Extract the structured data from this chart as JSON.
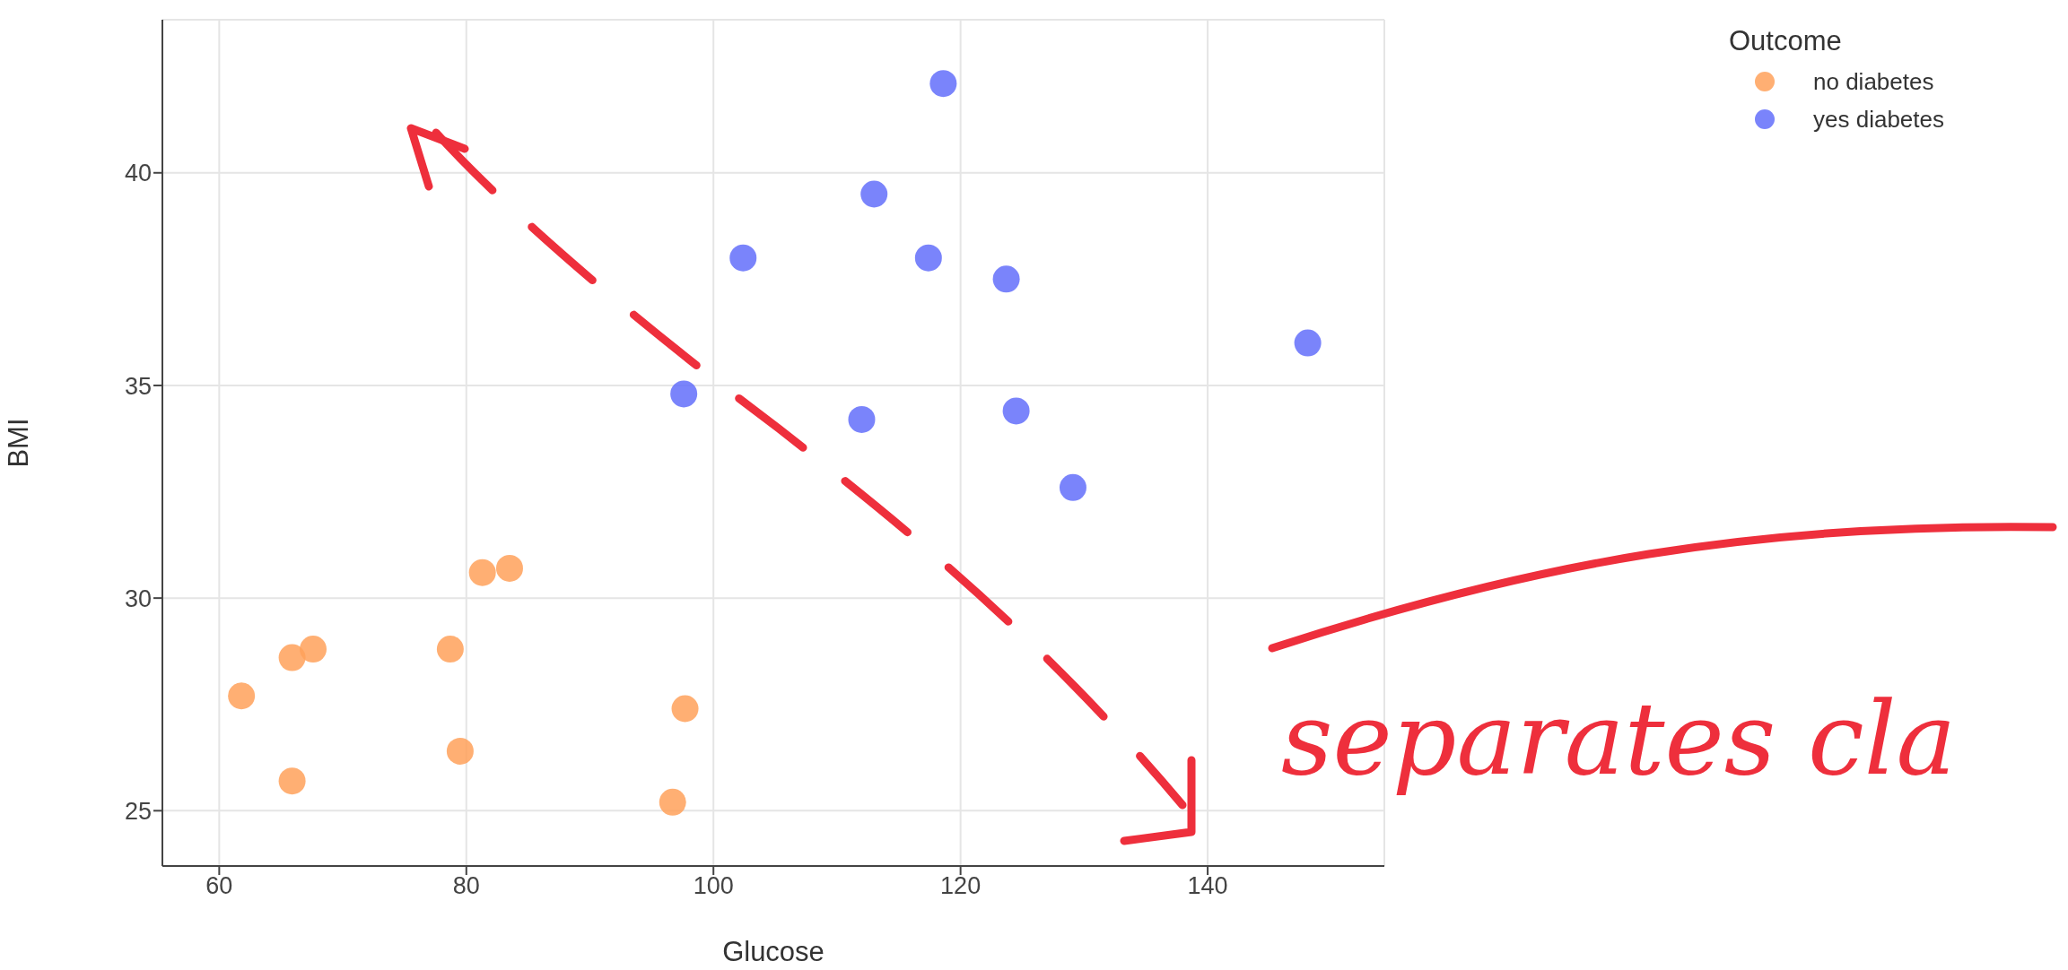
{
  "chart_data": {
    "type": "scatter",
    "xlabel": "Glucose",
    "ylabel": "BMI",
    "legend_title": "Outcome",
    "legend": "top right",
    "grid": true,
    "marker": "circle",
    "xlim": [
      55.4,
      154.3
    ],
    "xticks": [
      60,
      80,
      100,
      120,
      140
    ],
    "ylim": [
      23.7,
      43.6
    ],
    "yticks": [
      25,
      30,
      35,
      40
    ],
    "annotations": [
      "separates cla"
    ],
    "series": [
      {
        "name": "no diabetes",
        "color": "#ffa15a",
        "x": [
          61.8,
          65.9,
          67.6,
          65.9,
          78.7,
          79.5,
          81.3,
          83.5,
          97.7,
          96.7
        ],
        "values": [
          27.7,
          28.6,
          28.8,
          25.7,
          28.8,
          26.4,
          30.6,
          30.7,
          27.4,
          25.2
        ]
      },
      {
        "name": "yes diabetes",
        "color": "#636efa",
        "x": [
          118.6,
          113.0,
          117.4,
          123.7,
          148.1,
          112.0,
          124.5,
          129.1,
          102.4,
          97.6
        ],
        "values": [
          42.1,
          39.5,
          38.0,
          37.5,
          36.0,
          34.2,
          34.4,
          32.6,
          38.0,
          34.8
        ]
      }
    ]
  }
}
